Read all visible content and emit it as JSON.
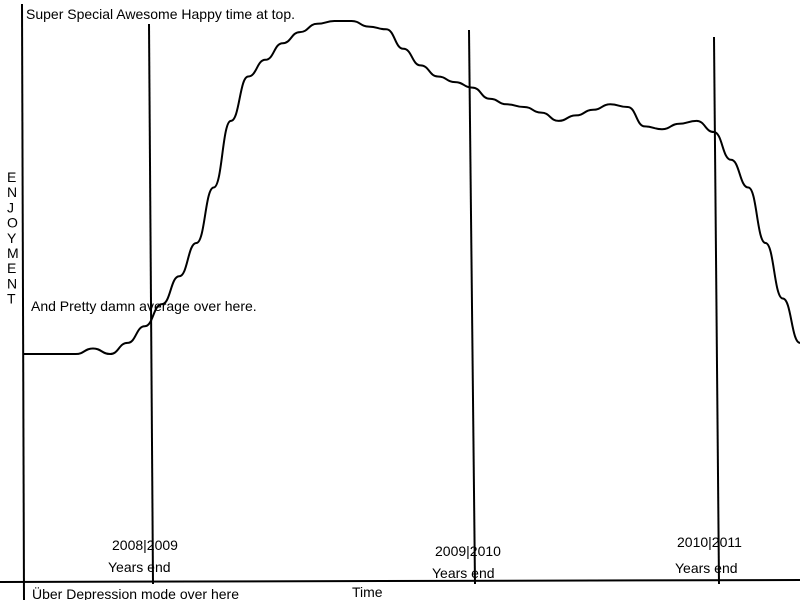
{
  "chart_data": {
    "type": "line",
    "title": "",
    "xlabel": "Time",
    "ylabel": "ENJOYMENT",
    "annotations": {
      "top": "Super Special Awesome Happy time at top.",
      "middle": "And Pretty damn average over here.",
      "bottom": "Über Depression mode over here"
    },
    "markers": [
      {
        "label": "2008|2009",
        "sublabel": "Years end"
      },
      {
        "label": "2009|2010",
        "sublabel": "Years end"
      },
      {
        "label": "2010|2011",
        "sublabel": "Years end"
      }
    ],
    "series": [
      {
        "name": "",
        "values": [
          0.4,
          0.4,
          0.4,
          0.4,
          0.41,
          0.4,
          0.42,
          0.45,
          0.49,
          0.54,
          0.6,
          0.7,
          0.82,
          0.9,
          0.93,
          0.96,
          0.98,
          0.995,
          1.0,
          1.0,
          0.99,
          0.985,
          0.95,
          0.92,
          0.9,
          0.89,
          0.88,
          0.86,
          0.85,
          0.845,
          0.835,
          0.82,
          0.83,
          0.84,
          0.85,
          0.845,
          0.81,
          0.805,
          0.815,
          0.82,
          0.8,
          0.75,
          0.7,
          0.6,
          0.5,
          0.42
        ]
      }
    ]
  }
}
